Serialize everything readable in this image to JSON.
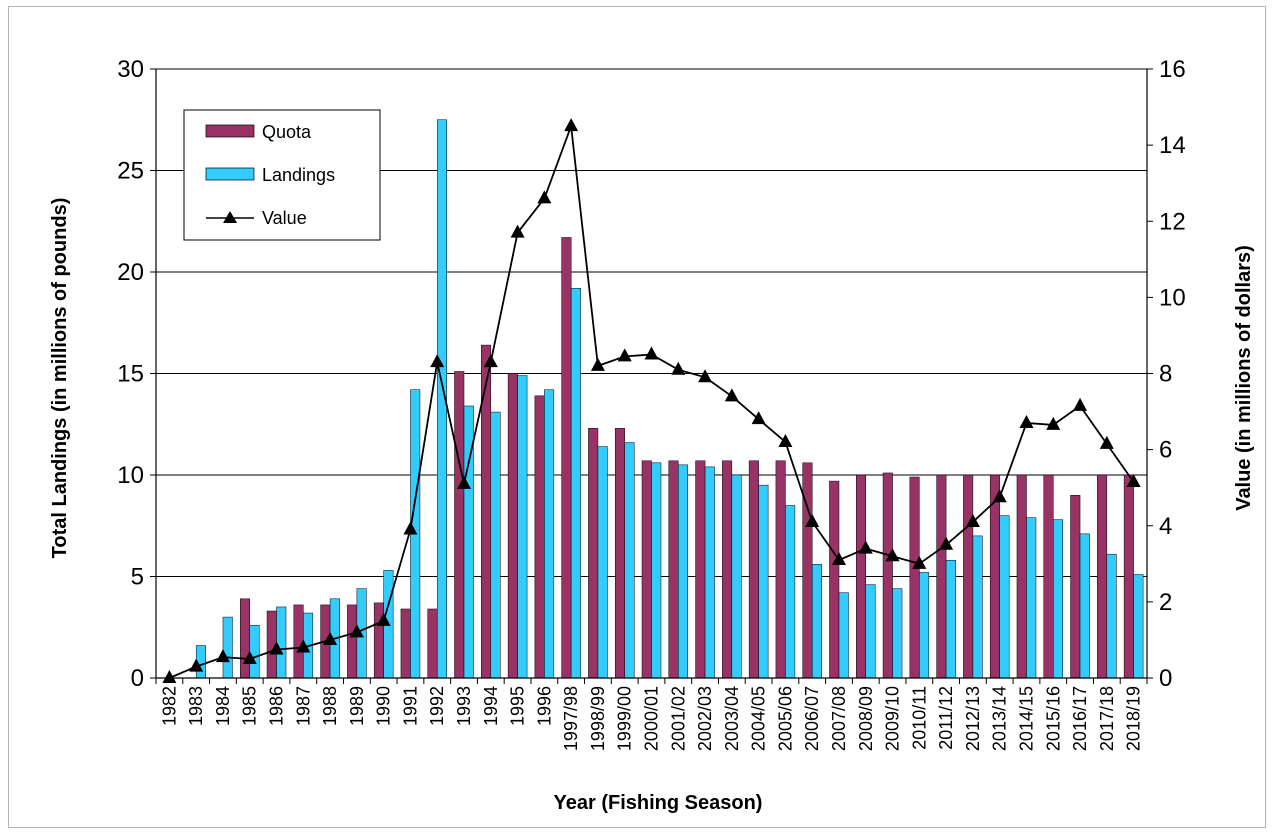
{
  "chart_data": {
    "type": "bar",
    "title": "",
    "xlabel": "Year (Fishing Season)",
    "ylabel": "Total Landings (in millions of pounds)",
    "y2label": "Value (in millions of dollars)",
    "ylim": [
      0,
      30
    ],
    "y2lim": [
      0,
      16
    ],
    "yticks": [
      0,
      5,
      10,
      15,
      20,
      25,
      30
    ],
    "y2ticks": [
      0,
      2,
      4,
      6,
      8,
      10,
      12,
      14,
      16
    ],
    "grid": true,
    "legend_position": "top-left",
    "categories": [
      "1982",
      "1983",
      "1984",
      "1985",
      "1986",
      "1987",
      "1988",
      "1989",
      "1990",
      "1991",
      "1992",
      "1993",
      "1994",
      "1995",
      "1996",
      "1997/98",
      "1998/99",
      "1999/00",
      "2000/01",
      "2001/02",
      "2002/03",
      "2003/04",
      "2004/05",
      "2005/06",
      "2006/07",
      "2007/08",
      "2008/09",
      "2009/10",
      "2010/11",
      "2011/12",
      "2012/13",
      "2013/14",
      "2014/15",
      "2015/16",
      "2016/17",
      "2017/18",
      "2018/19"
    ],
    "series": [
      {
        "name": "Quota",
        "type": "bar",
        "axis": "left",
        "color": "#993366",
        "values": [
          0,
          0,
          0,
          3.9,
          3.3,
          3.6,
          3.6,
          3.6,
          3.7,
          3.4,
          3.4,
          15.1,
          16.4,
          15.0,
          13.9,
          21.7,
          12.3,
          12.3,
          10.7,
          10.7,
          10.7,
          10.7,
          10.7,
          10.7,
          10.6,
          9.7,
          10.0,
          10.1,
          9.9,
          10.0,
          10.0,
          10.0,
          10.0,
          10.0,
          9.0,
          10.0,
          10.0
        ]
      },
      {
        "name": "Landings",
        "type": "bar",
        "axis": "left",
        "color": "#33ccff",
        "values": [
          0,
          1.6,
          3.0,
          2.6,
          3.5,
          3.2,
          3.9,
          4.4,
          5.3,
          14.2,
          27.5,
          13.4,
          13.1,
          14.9,
          14.2,
          19.2,
          11.4,
          11.6,
          10.6,
          10.5,
          10.4,
          10.0,
          9.5,
          8.5,
          5.6,
          4.2,
          4.6,
          4.4,
          5.2,
          5.8,
          7.0,
          8.0,
          7.9,
          7.8,
          7.1,
          6.1,
          5.1
        ]
      },
      {
        "name": "Value",
        "type": "line",
        "axis": "right",
        "color": "#000000",
        "values": [
          0.0,
          0.3,
          0.55,
          0.5,
          0.75,
          0.8,
          1.0,
          1.2,
          1.5,
          3.9,
          8.3,
          5.1,
          8.3,
          11.7,
          12.6,
          14.5,
          8.2,
          8.45,
          8.5,
          8.1,
          7.9,
          7.4,
          6.8,
          6.2,
          4.1,
          3.1,
          3.4,
          3.2,
          3.0,
          3.5,
          4.1,
          4.75,
          6.7,
          6.65,
          7.15,
          6.15,
          5.15
        ]
      }
    ]
  }
}
